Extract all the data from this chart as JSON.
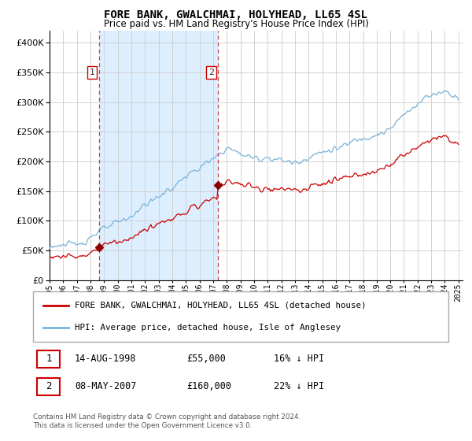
{
  "title": "FORE BANK, GWALCHMAI, HOLYHEAD, LL65 4SL",
  "subtitle": "Price paid vs. HM Land Registry's House Price Index (HPI)",
  "legend_line1": "FORE BANK, GWALCHMAI, HOLYHEAD, LL65 4SL (detached house)",
  "legend_line2": "HPI: Average price, detached house, Isle of Anglesey",
  "transaction1_date": "14-AUG-1998",
  "transaction1_price": "£55,000",
  "transaction1_hpi": "16% ↓ HPI",
  "transaction2_date": "08-MAY-2007",
  "transaction2_price": "£160,000",
  "transaction2_hpi": "22% ↓ HPI",
  "footnote": "Contains HM Land Registry data © Crown copyright and database right 2024.\nThis data is licensed under the Open Government Licence v3.0.",
  "hpi_color": "#7ab4d8",
  "price_color": "#cc0000",
  "shade_color": "#ddeeff",
  "marker1_year": 1998.62,
  "marker1_price": 55000,
  "marker2_year": 2007.35,
  "marker2_price": 160000,
  "ylim": [
    0,
    420000
  ],
  "xlim_start": 1995.0,
  "xlim_end": 2025.3
}
